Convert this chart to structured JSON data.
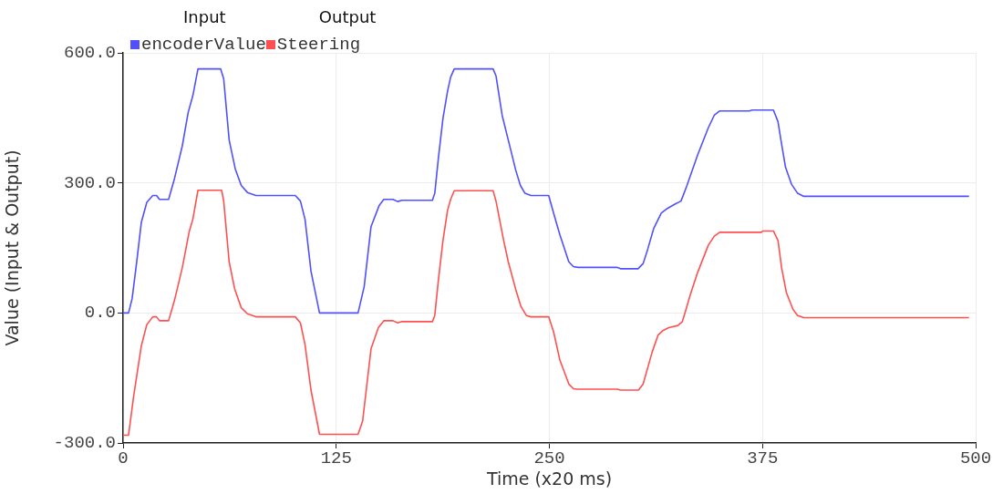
{
  "chart_data": {
    "type": "line",
    "xlabel": "Time (x20 ms)",
    "ylabel": "Value (Input & Output)",
    "annotations": [
      "Input",
      "Output"
    ],
    "xlim": [
      0,
      500
    ],
    "xticks": [
      0,
      125,
      250,
      375,
      500
    ],
    "ylim": [
      -300,
      600
    ],
    "yticks": [
      {
        "value": -300,
        "label": "-300.0"
      },
      {
        "value": 0,
        "label": "0.0"
      },
      {
        "value": 300,
        "label": "300.0"
      },
      {
        "value": 600,
        "label": "600.0"
      }
    ],
    "grid": true,
    "legend": "top left",
    "marker": "none",
    "line_style": "solid",
    "series": [
      {
        "name": "encoderValue",
        "color": "#5050ff",
        "x": [
          0,
          3.2,
          5.3,
          8,
          10.7,
          13.9,
          17.4,
          19.6,
          21.3,
          26.7,
          30.2,
          34.7,
          38.2,
          40.9,
          43.9,
          57.2,
          59,
          62.2,
          65.8,
          69.3,
          72.9,
          77.9,
          101,
          104,
          106.7,
          110.2,
          115.2,
          137.8,
          141.4,
          145.4,
          150.2,
          152.9,
          158.3,
          161,
          163.6,
          181.4,
          182.8,
          184.9,
          187.6,
          190.3,
          192.1,
          194.2,
          217,
          218.7,
          222.3,
          225.9,
          230.3,
          233,
          235.7,
          239.2,
          249.6,
          252.5,
          256.1,
          261.4,
          264.1,
          266.8,
          289.9,
          291.7,
          302,
          305,
          307.6,
          311.2,
          315.6,
          319.2,
          323.6,
          327.2,
          330.7,
          336.9,
          343.2,
          346.7,
          349.9,
          367.2,
          369,
          381.4,
          384.1,
          385.8,
          388.5,
          392,
          395.6,
          399.2,
          496.1
        ],
        "values": [
          0,
          0,
          33,
          118,
          209,
          255,
          271,
          271,
          262,
          262,
          311,
          385,
          463,
          501,
          563,
          563,
          540,
          399,
          332,
          294,
          278,
          271,
          271,
          258,
          216,
          96,
          0,
          0,
          61,
          199,
          248,
          262,
          262,
          257,
          260,
          260,
          276,
          357,
          449,
          512,
          544,
          563,
          563,
          547,
          456,
          399,
          329,
          294,
          276,
          271,
          271,
          230,
          181,
          118,
          107,
          105,
          105,
          102,
          102,
          114,
          146,
          195,
          230,
          241,
          251,
          258,
          294,
          364,
          427,
          456,
          466,
          466,
          468,
          468,
          441,
          399,
          336,
          297,
          276,
          269,
          269
        ]
      },
      {
        "name": "Steering",
        "color": "#ff5050",
        "x": [
          0,
          3.2,
          6.2,
          10.7,
          13.9,
          17.4,
          19.6,
          21.3,
          26.7,
          30.2,
          34.7,
          38.8,
          40.9,
          43.9,
          57.8,
          59,
          62.2,
          65.4,
          69.3,
          72.9,
          77.9,
          101,
          104,
          106.7,
          110.2,
          115.2,
          137.8,
          140.5,
          145.4,
          149.7,
          152.9,
          158.3,
          161,
          163.6,
          181.4,
          182.8,
          184.9,
          187.6,
          190.3,
          192.1,
          194.2,
          217,
          218.7,
          223.2,
          225.9,
          230.3,
          233.3,
          236.5,
          239.2,
          249.6,
          252.5,
          256.1,
          261.4,
          264.1,
          266.8,
          289.9,
          291.7,
          302.3,
          305,
          310.3,
          313.8,
          316.5,
          320,
          325.4,
          328,
          329.9,
          332.5,
          336.9,
          343.2,
          346.7,
          349.9,
          374.3,
          375.2,
          381.4,
          384.1,
          386.2,
          389,
          392.9,
          395.6,
          399.2,
          496.1
        ],
        "values": [
          -282,
          -282,
          -192,
          -76,
          -27,
          -9,
          -9,
          -18,
          -18,
          30,
          104,
          188,
          216,
          283,
          283,
          258,
          118,
          56,
          12,
          -2,
          -9,
          -9,
          -23,
          -73,
          -178,
          -280,
          -280,
          -249,
          -83,
          -34,
          -18,
          -18,
          -23,
          -20,
          -20,
          -6,
          75,
          167,
          237,
          262,
          282,
          282,
          258,
          167,
          118,
          54,
          15,
          -6,
          -9,
          -9,
          -44,
          -108,
          -164,
          -175,
          -176,
          -176,
          -178,
          -178,
          -164,
          -90,
          -51,
          -41,
          -34,
          -29,
          -20,
          5,
          40,
          93,
          156,
          177,
          186,
          186,
          189,
          189,
          167,
          104,
          47,
          8,
          -6,
          -11,
          -11
        ]
      }
    ]
  }
}
